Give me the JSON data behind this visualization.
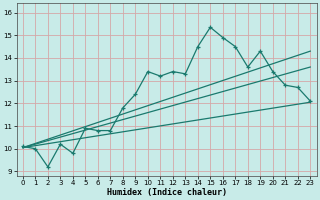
{
  "xlabel": "Humidex (Indice chaleur)",
  "bg_color": "#c8ebe8",
  "grid_color": "#d4a8a8",
  "line_color": "#1a7a6e",
  "ylim": [
    8.8,
    16.4
  ],
  "xlim": [
    -0.5,
    23.5
  ],
  "yticks": [
    9,
    10,
    11,
    12,
    13,
    14,
    15,
    16
  ],
  "xticks": [
    0,
    1,
    2,
    3,
    4,
    5,
    6,
    7,
    8,
    9,
    10,
    11,
    12,
    13,
    14,
    15,
    16,
    17,
    18,
    19,
    20,
    21,
    22,
    23
  ],
  "series1_x": [
    0,
    1,
    2,
    3,
    4,
    5,
    6,
    7,
    8,
    9,
    10,
    11,
    12,
    13,
    14,
    15,
    16,
    17,
    18,
    19,
    20,
    21,
    22,
    23
  ],
  "series1_y": [
    10.1,
    10.0,
    9.2,
    10.2,
    9.8,
    10.9,
    10.8,
    10.8,
    11.8,
    12.4,
    13.4,
    13.2,
    13.4,
    13.3,
    14.5,
    15.35,
    14.9,
    14.5,
    13.6,
    14.3,
    13.4,
    12.8,
    12.7,
    12.1
  ],
  "line1_x": [
    0,
    23
  ],
  "line1_y": [
    10.05,
    12.05
  ],
  "line2_x": [
    0,
    23
  ],
  "line2_y": [
    10.05,
    13.6
  ],
  "line3_x": [
    0,
    23
  ],
  "line3_y": [
    10.05,
    14.3
  ]
}
